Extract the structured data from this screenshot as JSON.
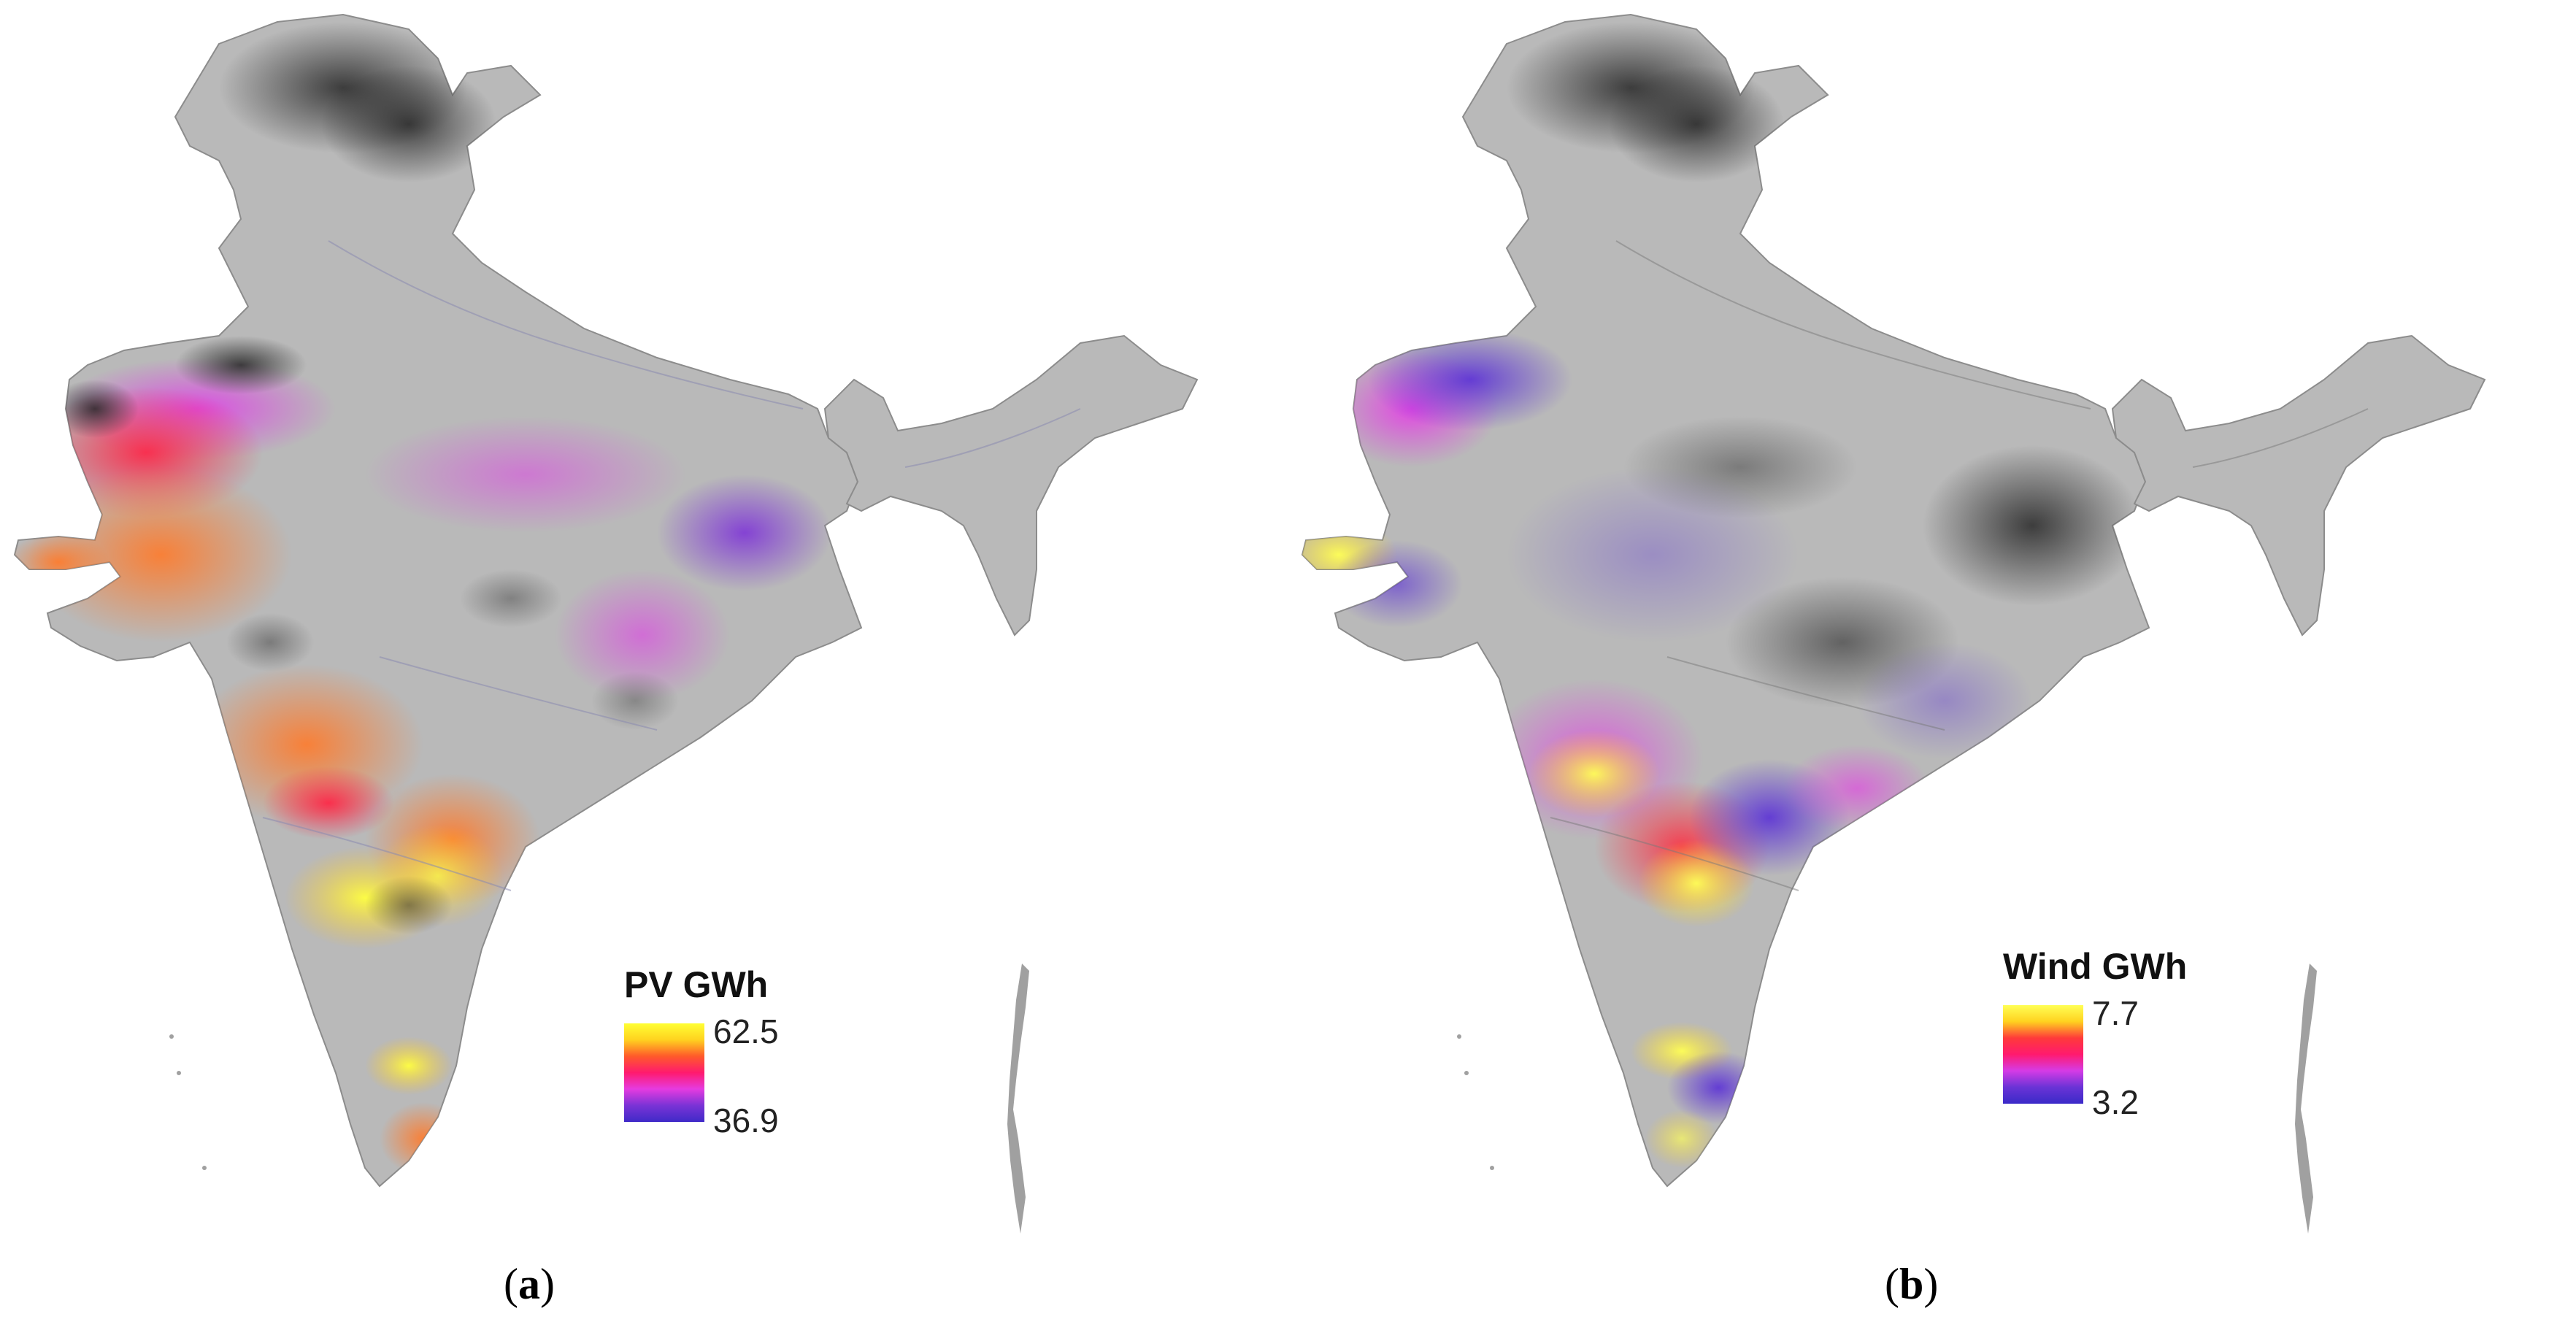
{
  "panels": [
    {
      "legend": {
        "title": "PV GWh",
        "max": "62.5",
        "min": "36.9",
        "colors": [
          "#ffff33",
          "#ffd21f",
          "#ff5a2a",
          "#ff1a6e",
          "#e53be0",
          "#7a33d6",
          "#3f2ac8"
        ]
      },
      "caption_letter": "a"
    },
    {
      "legend": {
        "title": "Wind GWh",
        "max": "7.7",
        "min": "3.2",
        "colors": [
          "#ffff55",
          "#ffd21f",
          "#ff3a3a",
          "#ff1a6e",
          "#d53be6",
          "#6a33d6",
          "#3a2ac8"
        ]
      },
      "caption_letter": "b"
    }
  ],
  "colors": {
    "land": "#b9b9b9",
    "dark_terrain": "#2c2c2c",
    "border": "#8c8c8c"
  }
}
